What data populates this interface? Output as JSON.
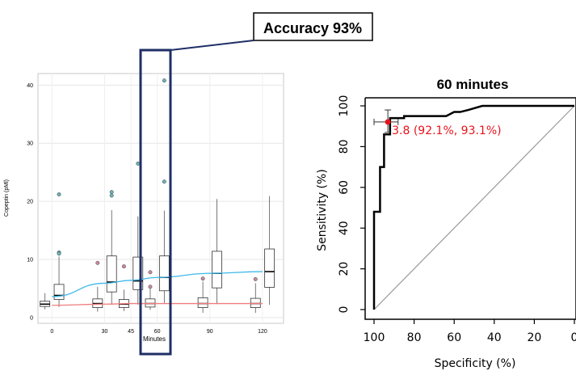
{
  "callout": {
    "text": "Accuracy 93%"
  },
  "chart_data": [
    {
      "type": "box",
      "xlabel": "Minutes",
      "ylabel": "Copeptin (pMl)",
      "ylim": [
        -1,
        42
      ],
      "yticks": [
        0,
        10,
        20,
        30,
        40
      ],
      "xticks": [
        0,
        30,
        45,
        60,
        90,
        120
      ],
      "grid": true,
      "groups": [
        {
          "x": -4,
          "q1": 1.9,
          "median": 2.3,
          "q3": 2.8,
          "whisker_low": 1.4,
          "whisker_high": 4.2,
          "outliers": [],
          "color": "red"
        },
        {
          "x": 4,
          "q1": 3.1,
          "median": 3.8,
          "q3": 5.7,
          "whisker_low": 1.8,
          "whisker_high": 10.5,
          "outliers": [
            21.2,
            11.2,
            11.0
          ],
          "color": "blue"
        },
        {
          "x": 26,
          "q1": 1.7,
          "median": 2.4,
          "q3": 3.2,
          "whisker_low": 1.0,
          "whisker_high": 5.3,
          "outliers": [
            9.4
          ],
          "color": "red"
        },
        {
          "x": 34,
          "q1": 4.4,
          "median": 6.1,
          "q3": 10.6,
          "whisker_low": 2.2,
          "whisker_high": 18.5,
          "outliers": [
            21.6,
            21.0
          ],
          "color": "blue"
        },
        {
          "x": 41,
          "q1": 1.7,
          "median": 2.3,
          "q3": 3.1,
          "whisker_low": 1.1,
          "whisker_high": 4.8,
          "outliers": [
            8.8
          ],
          "color": "red"
        },
        {
          "x": 49,
          "q1": 4.8,
          "median": 6.3,
          "q3": 10.4,
          "whisker_low": 2.2,
          "whisker_high": 17.4,
          "outliers": [
            26.5
          ],
          "color": "blue"
        },
        {
          "x": 56,
          "q1": 1.8,
          "median": 2.4,
          "q3": 3.2,
          "whisker_low": 1.3,
          "whisker_high": 5.1,
          "outliers": [
            7.8,
            5.3
          ],
          "color": "red"
        },
        {
          "x": 64,
          "q1": 4.6,
          "median": 6.9,
          "q3": 10.6,
          "whisker_low": 2.5,
          "whisker_high": 18.4,
          "outliers": [
            40.8,
            23.4
          ],
          "color": "blue"
        },
        {
          "x": 86,
          "q1": 1.7,
          "median": 2.4,
          "q3": 3.4,
          "whisker_low": 0.8,
          "whisker_high": 6.2,
          "outliers": [
            6.7
          ],
          "color": "red"
        },
        {
          "x": 94,
          "q1": 5.1,
          "median": 7.6,
          "q3": 11.4,
          "whisker_low": 2.3,
          "whisker_high": 20.4,
          "outliers": [],
          "color": "blue"
        },
        {
          "x": 116,
          "q1": 1.7,
          "median": 2.4,
          "q3": 3.3,
          "whisker_low": 0.8,
          "whisker_high": 5.9,
          "outliers": [
            6.6
          ],
          "color": "red"
        },
        {
          "x": 124,
          "q1": 5.2,
          "median": 7.9,
          "q3": 11.8,
          "whisker_low": 2.2,
          "whisker_high": 20.9,
          "outliers": [],
          "color": "blue"
        }
      ],
      "trend_blue": {
        "x": [
          0,
          30,
          45,
          60,
          90,
          120
        ],
        "y": [
          3.6,
          5.9,
          6.4,
          6.9,
          7.6,
          7.9
        ],
        "color": "#3fb9e8"
      },
      "trend_red": {
        "x": [
          0,
          30,
          45,
          60,
          90,
          120
        ],
        "y": [
          2.1,
          2.3,
          2.4,
          2.4,
          2.4,
          2.4
        ],
        "color": "#f07c7c"
      },
      "highlight_x": 60
    },
    {
      "type": "line",
      "title": "60 minutes",
      "xlabel": "Specificity (%)",
      "ylabel": "Sensitivity (%)",
      "xlim": [
        100,
        0
      ],
      "ylim": [
        0,
        100
      ],
      "xticks": [
        100,
        80,
        60,
        40,
        20,
        0
      ],
      "yticks": [
        0,
        20,
        40,
        60,
        80,
        100
      ],
      "roc": {
        "specificity": [
          100,
          100,
          97,
          97,
          95,
          95,
          92,
          92,
          85,
          85,
          64,
          60,
          57,
          53,
          46,
          30,
          0
        ],
        "sensitivity": [
          0,
          48,
          48,
          70,
          70,
          86,
          86,
          94,
          94,
          95,
          95,
          97,
          97,
          98,
          100,
          100,
          100
        ]
      },
      "diagonal": {
        "from": [
          100,
          0
        ],
        "to": [
          0,
          100
        ]
      },
      "point": {
        "specificity": 93.1,
        "sensitivity": 92.1,
        "label": "3.8 (92.1%, 93.1%)",
        "color": "#e8121b"
      },
      "error_bars": {
        "h": [
          100,
          88
        ],
        "v": [
          87,
          98
        ]
      }
    }
  ]
}
